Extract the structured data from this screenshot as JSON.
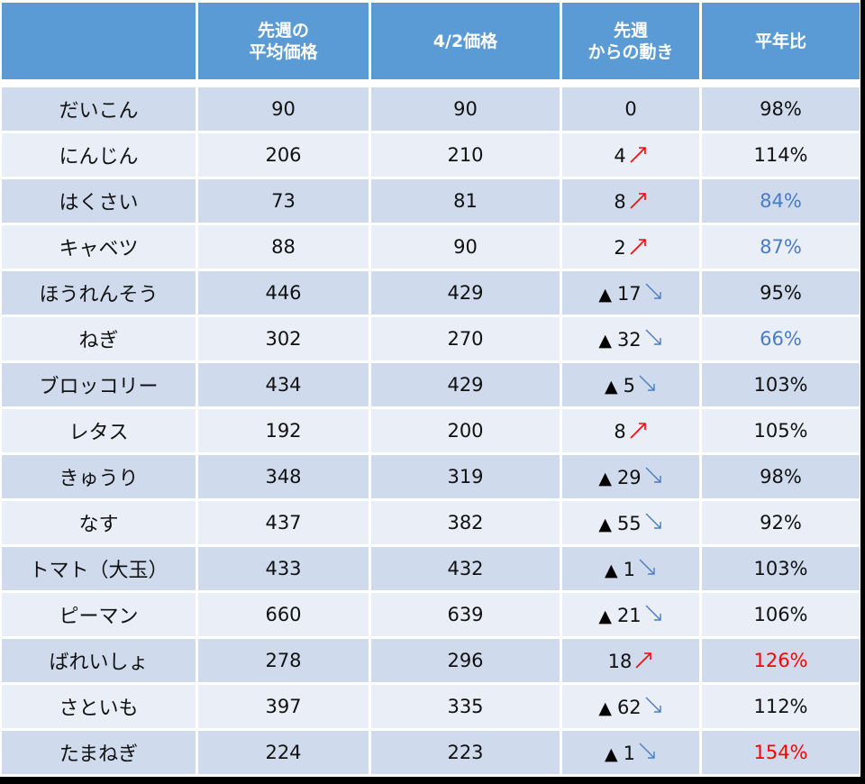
{
  "table": {
    "headers": [
      "",
      "先週の\n平均価格",
      "4/2価格",
      "先週\nからの動き",
      "平年比"
    ],
    "header_lines": [
      [
        ""
      ],
      [
        "先週の",
        "平均価格"
      ],
      [
        "4/2価格"
      ],
      [
        "先週",
        "からの動き"
      ],
      [
        "平年比"
      ]
    ],
    "colors": {
      "header_bg": "#5b9bd5",
      "row_odd": "#cfdbed",
      "row_even": "#e9eef7",
      "up_arrow": "#ff0000",
      "down_arrow": "#4a7cc4",
      "ratio_low": "#4a7cc4",
      "ratio_high": "#ff0000"
    },
    "rows": [
      {
        "name": "だいこん",
        "last_week_avg": "90",
        "price_4_2": "90",
        "change": "0",
        "change_prefix": "",
        "direction": "none",
        "ratio": "98%",
        "ratio_style": "normal"
      },
      {
        "name": "にんじん",
        "last_week_avg": "206",
        "price_4_2": "210",
        "change": "4",
        "change_prefix": "",
        "direction": "up",
        "ratio": "114%",
        "ratio_style": "normal"
      },
      {
        "name": "はくさい",
        "last_week_avg": "73",
        "price_4_2": "81",
        "change": "8",
        "change_prefix": "",
        "direction": "up",
        "ratio": "84%",
        "ratio_style": "low"
      },
      {
        "name": "キャベツ",
        "last_week_avg": "88",
        "price_4_2": "90",
        "change": "2",
        "change_prefix": "",
        "direction": "up",
        "ratio": "87%",
        "ratio_style": "low"
      },
      {
        "name": "ほうれんそう",
        "last_week_avg": "446",
        "price_4_2": "429",
        "change": "17",
        "change_prefix": "▲",
        "direction": "down",
        "ratio": "95%",
        "ratio_style": "normal"
      },
      {
        "name": "ねぎ",
        "last_week_avg": "302",
        "price_4_2": "270",
        "change": "32",
        "change_prefix": "▲",
        "direction": "down",
        "ratio": "66%",
        "ratio_style": "low"
      },
      {
        "name": "ブロッコリー",
        "last_week_avg": "434",
        "price_4_2": "429",
        "change": "5",
        "change_prefix": "▲",
        "direction": "down",
        "ratio": "103%",
        "ratio_style": "normal"
      },
      {
        "name": "レタス",
        "last_week_avg": "192",
        "price_4_2": "200",
        "change": "8",
        "change_prefix": "",
        "direction": "up",
        "ratio": "105%",
        "ratio_style": "normal"
      },
      {
        "name": "きゅうり",
        "last_week_avg": "348",
        "price_4_2": "319",
        "change": "29",
        "change_prefix": "▲",
        "direction": "down",
        "ratio": "98%",
        "ratio_style": "normal"
      },
      {
        "name": "なす",
        "last_week_avg": "437",
        "price_4_2": "382",
        "change": "55",
        "change_prefix": "▲",
        "direction": "down",
        "ratio": "92%",
        "ratio_style": "normal"
      },
      {
        "name": "トマト（大玉）",
        "last_week_avg": "433",
        "price_4_2": "432",
        "change": "1",
        "change_prefix": "▲",
        "direction": "down",
        "ratio": "103%",
        "ratio_style": "normal"
      },
      {
        "name": "ピーマン",
        "last_week_avg": "660",
        "price_4_2": "639",
        "change": "21",
        "change_prefix": "▲",
        "direction": "down",
        "ratio": "106%",
        "ratio_style": "normal"
      },
      {
        "name": "ばれいしょ",
        "last_week_avg": "278",
        "price_4_2": "296",
        "change": "18",
        "change_prefix": "",
        "direction": "up",
        "ratio": "126%",
        "ratio_style": "high"
      },
      {
        "name": "さといも",
        "last_week_avg": "397",
        "price_4_2": "335",
        "change": "62",
        "change_prefix": "▲",
        "direction": "down",
        "ratio": "112%",
        "ratio_style": "normal"
      },
      {
        "name": "たまねぎ",
        "last_week_avg": "224",
        "price_4_2": "223",
        "change": "1",
        "change_prefix": "▲",
        "direction": "down",
        "ratio": "154%",
        "ratio_style": "high"
      }
    ]
  }
}
